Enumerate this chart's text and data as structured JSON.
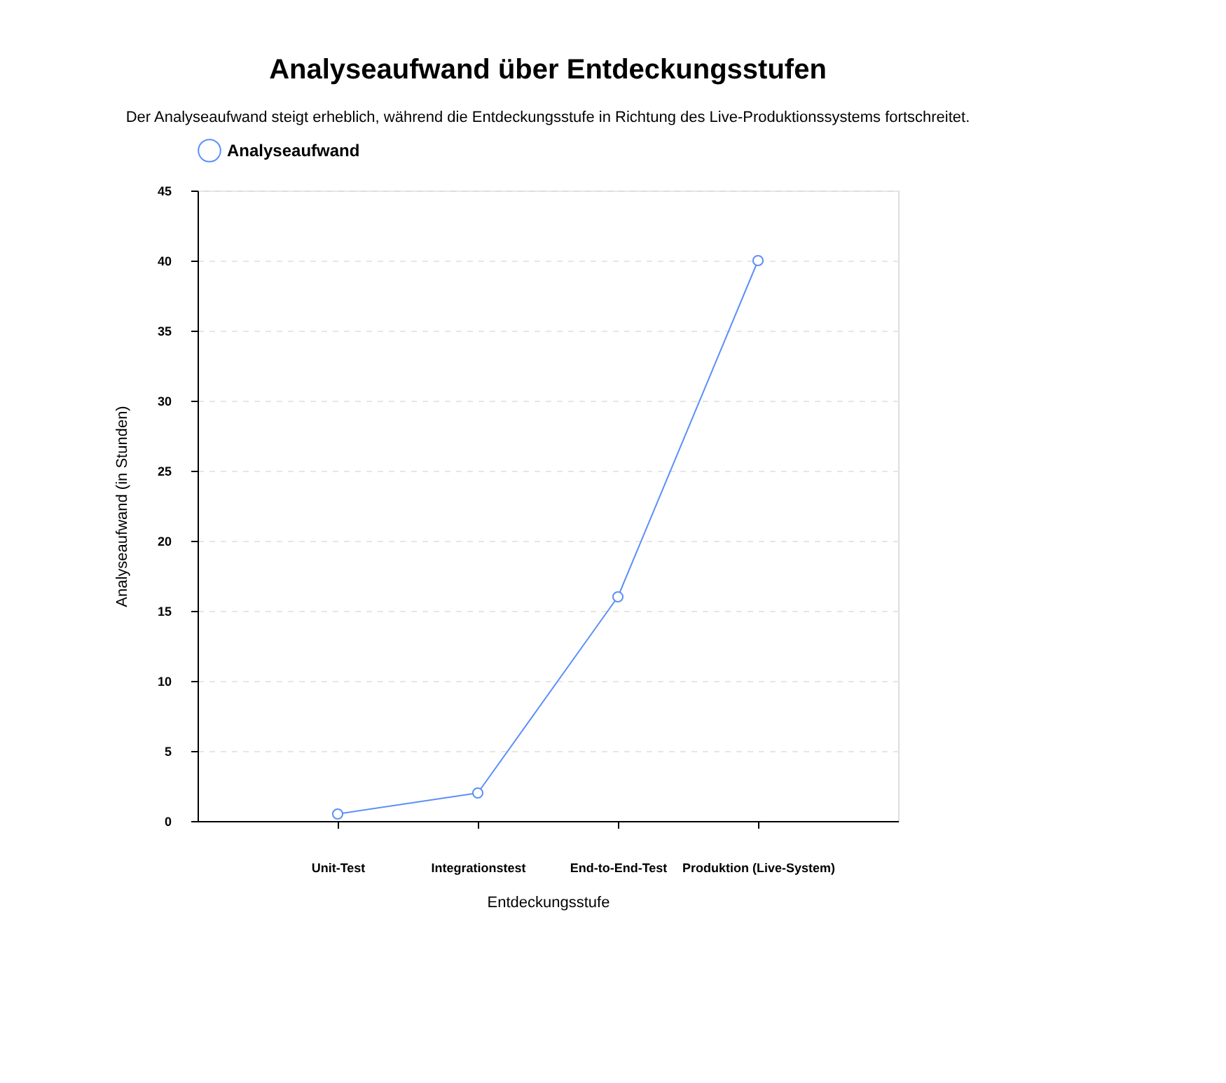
{
  "chart_data": {
    "type": "line",
    "title": "Analyseaufwand über Entdeckungsstufen",
    "subtitle": "Der Analyseaufwand steigt erheblich, während die Entdeckungsstufe in Richtung des Live-Produktionssystems fortschreitet.",
    "xlabel": "Entdeckungsstufe",
    "ylabel": "Analyseaufwand (in Stunden)",
    "categories": [
      "Unit-Test",
      "Integrationstest",
      "End-to-End-Test",
      "Produktion (Live-System)"
    ],
    "series": [
      {
        "name": "Analyseaufwand",
        "color": "#5b8ff9",
        "values": [
          0.5,
          2,
          16,
          40
        ]
      }
    ],
    "ylim": [
      0,
      45
    ],
    "yticks": [
      0,
      5,
      10,
      15,
      20,
      25,
      30,
      35,
      40,
      45
    ],
    "grid": "y",
    "legend": "top",
    "marker": "circle",
    "line_style": "solid"
  }
}
